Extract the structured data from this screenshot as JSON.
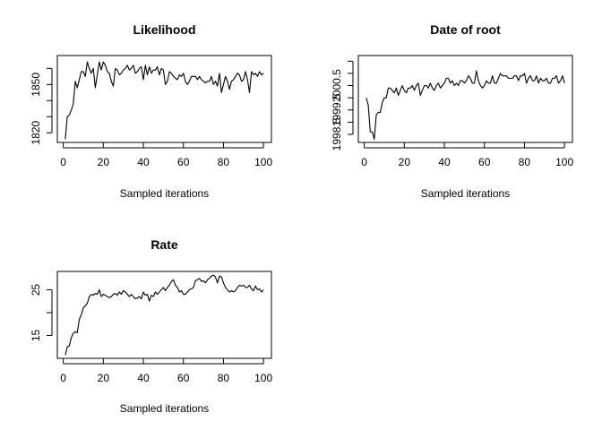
{
  "chart_data": [
    {
      "type": "line",
      "title": "Likelihood",
      "xlabel": "Sampled iterations",
      "ylabel": "",
      "xlim": [
        1,
        100
      ],
      "ylim": [
        1816,
        1866
      ],
      "xticks": [
        0,
        20,
        40,
        60,
        80,
        100
      ],
      "yticks": [
        1820,
        1830,
        1840,
        1850,
        1860
      ],
      "ytick_labels": [
        "1820",
        "",
        "",
        "1850",
        ""
      ],
      "series": [
        {
          "values": [
            1816,
            1830,
            1831,
            1834,
            1838,
            1852,
            1848,
            1853,
            1858,
            1858,
            1855,
            1864,
            1860,
            1857,
            1860,
            1848,
            1856,
            1864,
            1859,
            1864,
            1862,
            1858,
            1857,
            1852,
            1849,
            1860,
            1859,
            1856,
            1857,
            1859,
            1860,
            1862,
            1859,
            1860,
            1862,
            1857,
            1858,
            1860,
            1861,
            1853,
            1862,
            1856,
            1861,
            1857,
            1859,
            1859,
            1861,
            1856,
            1860,
            1859,
            1850,
            1852,
            1858,
            1857,
            1855,
            1854,
            1853,
            1856,
            1855,
            1857,
            1852,
            1850,
            1852,
            1855,
            1855,
            1855,
            1853,
            1855,
            1853,
            1852,
            1851,
            1852,
            1852,
            1855,
            1850,
            1852,
            1849,
            1857,
            1845,
            1850,
            1855,
            1852,
            1847,
            1852,
            1853,
            1855,
            1857,
            1856,
            1852,
            1853,
            1858,
            1853,
            1845,
            1858,
            1856,
            1857,
            1855,
            1858,
            1856,
            1857
          ]
        }
      ]
    },
    {
      "type": "line",
      "title": "Date of root",
      "xlabel": "Sampled iterations",
      "ylabel": "",
      "xlim": [
        1,
        100
      ],
      "ylim": [
        1998.3,
        2001.6
      ],
      "xticks": [
        0,
        20,
        40,
        60,
        80,
        100
      ],
      "yticks": [
        1998.5,
        1999.0,
        1999.5,
        2000.0,
        2000.5,
        2001.0,
        2001.5
      ],
      "ytick_labels": [
        "1998.5",
        "",
        "1999.5",
        "",
        "2000.5",
        "",
        ""
      ],
      "series": [
        {
          "values": [
            2000.0,
            1999.7,
            1998.6,
            1998.6,
            1998.3,
            1999.3,
            1999.4,
            1999.4,
            1999.8,
            2000.0,
            2000.0,
            2000.4,
            2000.4,
            2000.3,
            2000.2,
            2000.4,
            2000.1,
            2000.3,
            2000.5,
            2000.3,
            2000.2,
            2000.4,
            2000.4,
            2000.5,
            2000.3,
            2000.5,
            2000.6,
            2000.1,
            2000.3,
            2000.5,
            2000.5,
            2000.4,
            2000.6,
            2000.4,
            2000.3,
            2000.5,
            2000.6,
            2000.4,
            2000.5,
            2000.6,
            2000.8,
            2000.8,
            2000.6,
            2000.7,
            2000.5,
            2000.6,
            2000.5,
            2000.7,
            2000.7,
            2000.6,
            2000.7,
            2000.9,
            2000.8,
            2000.6,
            2000.6,
            2001.1,
            2000.7,
            2000.5,
            2000.4,
            2000.5,
            2000.7,
            2000.6,
            2000.6,
            2000.9,
            2000.6,
            2000.6,
            2000.8,
            2001.0,
            2000.9,
            2000.9,
            2000.9,
            2000.8,
            2000.8,
            2000.8,
            2000.9,
            2000.9,
            2000.7,
            2000.9,
            2000.9,
            2001.0,
            2000.6,
            2000.8,
            2000.9,
            2000.7,
            2000.7,
            2000.9,
            2000.6,
            2000.8,
            2000.7,
            2000.7,
            2000.8,
            2000.6,
            2000.6,
            2000.8,
            2000.8,
            2000.9,
            2000.6,
            2000.7,
            2000.9,
            2000.6
          ]
        }
      ]
    },
    {
      "type": "line",
      "title": "Rate",
      "xlabel": "Sampled iterations",
      "ylabel": "",
      "xlim": [
        1,
        100
      ],
      "ylim": [
        10.7,
        28.3
      ],
      "xticks": [
        0,
        20,
        40,
        60,
        80,
        100
      ],
      "yticks": [
        15,
        20,
        25
      ],
      "ytick_labels": [
        "15",
        "",
        "25"
      ],
      "series": [
        {
          "values": [
            10.7,
            12.5,
            12.7,
            14.5,
            15.5,
            15.8,
            15.6,
            18.5,
            19.5,
            21.0,
            21.5,
            22.0,
            23.5,
            24.0,
            23.8,
            24.2,
            24.0,
            25.0,
            23.5,
            24.0,
            23.8,
            23.5,
            23.3,
            23.5,
            24.0,
            24.2,
            23.8,
            24.5,
            24.0,
            24.8,
            24.5,
            24.0,
            23.5,
            24.0,
            23.5,
            23.0,
            23.2,
            23.5,
            23.0,
            24.5,
            23.8,
            24.0,
            22.5,
            23.8,
            23.5,
            24.5,
            24.0,
            24.5,
            25.0,
            25.5,
            24.8,
            25.5,
            26.0,
            26.8,
            27.2,
            26.0,
            25.5,
            24.5,
            24.8,
            24.0,
            24.0,
            24.5,
            25.0,
            25.2,
            25.5,
            27.0,
            27.2,
            27.5,
            26.8,
            27.0,
            26.5,
            27.2,
            27.5,
            28.0,
            28.2,
            27.8,
            26.5,
            28.0,
            27.8,
            26.5,
            25.5,
            25.0,
            24.5,
            24.8,
            24.5,
            24.8,
            25.5,
            26.0,
            25.8,
            26.0,
            25.5,
            25.5,
            26.0,
            25.2,
            24.8,
            25.8,
            25.0,
            25.2,
            24.5,
            25.0
          ]
        }
      ]
    }
  ]
}
